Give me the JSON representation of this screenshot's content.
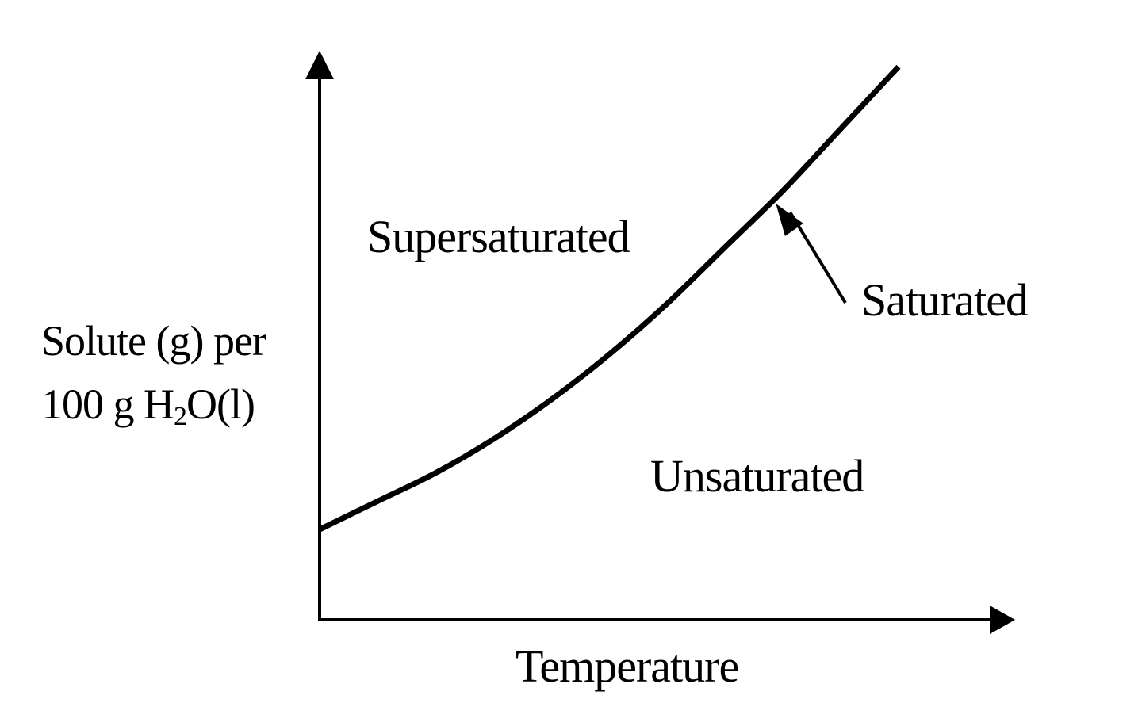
{
  "chart_data": {
    "type": "line",
    "xlabel": "Temperature",
    "ylabel": {
      "line1": "Solute (g) per",
      "line2_prefix": "100 g H",
      "line2_subscript": "2",
      "line2_suffix": "O(l)"
    },
    "series": [
      {
        "name": "Saturated",
        "shape": "increasing-convex",
        "x": [
          0,
          0.1,
          0.2,
          0.3,
          0.4,
          0.5,
          0.6,
          0.7,
          0.8,
          0.9,
          1.0
        ],
        "y": [
          0.16,
          0.21,
          0.26,
          0.32,
          0.39,
          0.47,
          0.56,
          0.66,
          0.76,
          0.87,
          0.98
        ]
      }
    ],
    "region_labels": {
      "above": "Supersaturated",
      "below": "Unsaturated"
    },
    "annotation": {
      "text": "Saturated",
      "points_to_x": 0.78
    },
    "axis_ticks": false,
    "grid": false,
    "colors": {
      "line": "#000000",
      "background": "#ffffff"
    }
  }
}
